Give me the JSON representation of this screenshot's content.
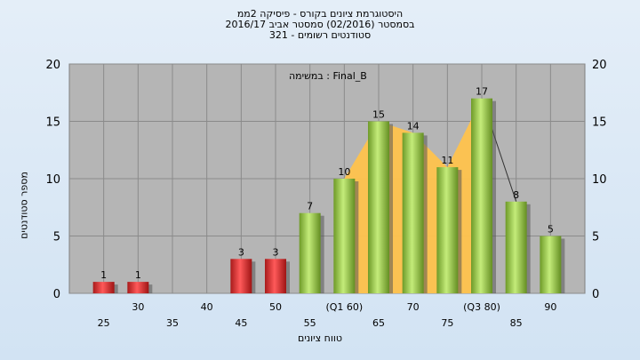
{
  "title_lines": [
    "היסטוגרמת ציונים בקורס - פיסיקה 2ממ",
    "בסמסטר  (02/2016)  סמסטר אביב 2016/17",
    "סטודנטים רשומים - 321"
  ],
  "annotation": "במשימה : Final_B",
  "chart_data": {
    "type": "bar",
    "ylabel": "מספר סטודנטים",
    "xlabel": "טווח ציונים",
    "ylim": [
      0,
      20
    ],
    "yticks": [
      0,
      5,
      10,
      15,
      20
    ],
    "grid": true,
    "x_tick_labels": [
      "25",
      "30",
      "35",
      "40",
      "45",
      "50",
      "55",
      "(Q1 60)",
      "65",
      "70",
      "75",
      "(Q3 80)",
      "85",
      "90"
    ],
    "bars": [
      {
        "x": 25,
        "value": 1,
        "color": "red"
      },
      {
        "x": 30,
        "value": 1,
        "color": "red"
      },
      {
        "x": 45,
        "value": 3,
        "color": "red"
      },
      {
        "x": 50,
        "value": 3,
        "color": "red"
      },
      {
        "x": 55,
        "value": 7,
        "color": "green"
      },
      {
        "x": 60,
        "value": 10,
        "color": "green"
      },
      {
        "x": 65,
        "value": 15,
        "color": "green"
      },
      {
        "x": 70,
        "value": 14,
        "color": "green"
      },
      {
        "x": 75,
        "value": 11,
        "color": "green"
      },
      {
        "x": 80,
        "value": 17,
        "color": "green"
      },
      {
        "x": 85,
        "value": 8,
        "color": "green"
      },
      {
        "x": 90,
        "value": 5,
        "color": "green"
      }
    ],
    "area_range": {
      "from": 60,
      "to": 80
    },
    "colors": {
      "plot_bg": "#b5b5b5",
      "red_bar": "#d92f2f",
      "green_bar": "#9acd4a",
      "area": "#ffc34d"
    }
  }
}
